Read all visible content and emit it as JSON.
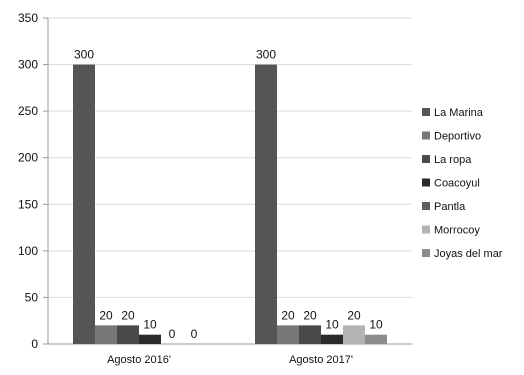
{
  "chart_data": {
    "type": "bar",
    "title": "",
    "xlabel": "",
    "ylabel": "",
    "categories": [
      "Agosto 2016'",
      "Agosto 2017'"
    ],
    "series": [
      {
        "name": "La Marina",
        "values": [
          300,
          300
        ],
        "color": "#555555"
      },
      {
        "name": "Deportivo",
        "values": [
          20,
          20
        ],
        "color": "#777777"
      },
      {
        "name": "La ropa",
        "values": [
          20,
          20
        ],
        "color": "#4a4a4a"
      },
      {
        "name": "Coacoyul",
        "values": [
          10,
          10
        ],
        "color": "#2b2b2b"
      },
      {
        "name": "Pantla",
        "values": [
          0,
          null
        ],
        "color": "#5e5e5e"
      },
      {
        "name": "Morrocoy",
        "values": [
          0,
          20
        ],
        "color": "#b3b3b3"
      },
      {
        "name": "Joyas del mar",
        "values": [
          null,
          10
        ],
        "color": "#8c8c8c"
      }
    ],
    "data_labels": [
      [
        "300",
        "20",
        "20",
        "10",
        "0",
        "0"
      ],
      [
        "300",
        "20",
        "20",
        "10",
        "20",
        "10"
      ]
    ],
    "ylim": [
      0,
      350
    ],
    "yticks": [
      0,
      50,
      100,
      150,
      200,
      250,
      300,
      350
    ],
    "grid": true,
    "legend_position": "right"
  }
}
